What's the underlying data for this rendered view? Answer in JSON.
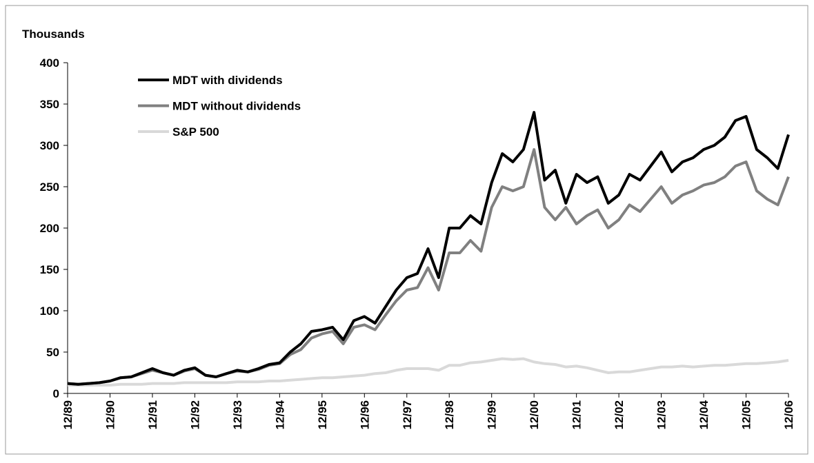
{
  "chart_data": {
    "type": "line",
    "y_label": "Thousands",
    "categories": [
      "12/89",
      null,
      null,
      null,
      "12/90",
      null,
      null,
      null,
      "12/91",
      null,
      null,
      null,
      "12/92",
      null,
      null,
      null,
      "12/93",
      null,
      null,
      null,
      "12/94",
      null,
      null,
      null,
      "12/95",
      null,
      null,
      null,
      "12/96",
      null,
      null,
      null,
      "12/97",
      null,
      null,
      null,
      "12/98",
      null,
      null,
      null,
      "12/99",
      null,
      null,
      null,
      "12/00",
      null,
      null,
      null,
      "12/01",
      null,
      null,
      null,
      "12/02",
      null,
      null,
      null,
      "12/03",
      null,
      null,
      null,
      "12/04",
      null,
      null,
      null,
      "12/05",
      null,
      null,
      null,
      "12/06"
    ],
    "series": [
      {
        "name": "MDT with dividends",
        "color": "#000000",
        "values": [
          12,
          11,
          12,
          13,
          15,
          19,
          20,
          25,
          30,
          25,
          22,
          28,
          31,
          22,
          20,
          24,
          28,
          26,
          30,
          35,
          37,
          50,
          60,
          75,
          77,
          80,
          65,
          88,
          93,
          85,
          105,
          125,
          140,
          145,
          175,
          140,
          200,
          200,
          215,
          205,
          255,
          290,
          280,
          295,
          340,
          258,
          270,
          230,
          265,
          255,
          262,
          230,
          240,
          265,
          258,
          275,
          292,
          268,
          280,
          285,
          295,
          300,
          310,
          330,
          335,
          295,
          285,
          272,
          313
        ]
      },
      {
        "name": "MDT without  dividends",
        "color": "#808080",
        "values": [
          12,
          11,
          12,
          13,
          15,
          19,
          20,
          24,
          28,
          25,
          22,
          27,
          30,
          22,
          20,
          24,
          27,
          26,
          29,
          34,
          36,
          47,
          53,
          67,
          72,
          75,
          60,
          80,
          83,
          77,
          95,
          112,
          125,
          128,
          152,
          125,
          170,
          170,
          185,
          172,
          225,
          250,
          245,
          250,
          295,
          225,
          210,
          225,
          205,
          215,
          222,
          200,
          210,
          228,
          220,
          235,
          250,
          230,
          240,
          245,
          252,
          255,
          262,
          275,
          280,
          245,
          235,
          228,
          262
        ]
      },
      {
        "name": "S&P 500",
        "color": "#d9d9d9",
        "values": [
          10,
          10,
          10,
          10,
          10,
          11,
          11,
          11,
          12,
          12,
          12,
          13,
          13,
          13,
          13,
          13,
          14,
          14,
          14,
          15,
          15,
          16,
          17,
          18,
          19,
          19,
          20,
          21,
          22,
          24,
          25,
          28,
          30,
          30,
          30,
          28,
          34,
          34,
          37,
          38,
          40,
          42,
          41,
          42,
          38,
          36,
          35,
          32,
          33,
          31,
          28,
          25,
          26,
          26,
          28,
          30,
          32,
          32,
          33,
          32,
          33,
          34,
          34,
          35,
          36,
          36,
          37,
          38,
          40
        ]
      }
    ],
    "ylim": [
      0,
      400
    ],
    "yticks": [
      0,
      50,
      100,
      150,
      200,
      250,
      300,
      350,
      400
    ],
    "legend": "upper-left",
    "grid": false
  }
}
